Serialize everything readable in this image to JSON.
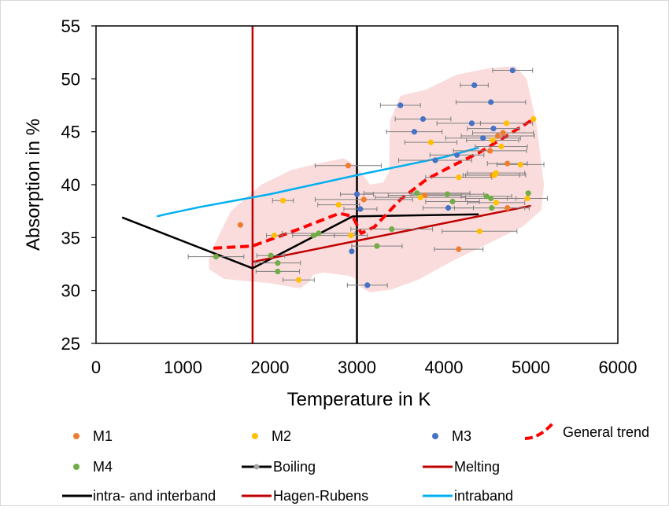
{
  "chart_data": {
    "type": "scatter",
    "xlabel": "Temperature in K",
    "ylabel": "Absorption in %",
    "xlim": [
      0,
      6000
    ],
    "ylim": [
      25,
      55
    ],
    "xticks": [
      0,
      1000,
      2000,
      3000,
      4000,
      5000,
      6000
    ],
    "yticks": [
      25,
      30,
      35,
      40,
      45,
      50,
      55
    ],
    "xtick_labels": [
      "0",
      "1000",
      "2000",
      "3000",
      "4000",
      "5000",
      "6000"
    ],
    "ytick_labels": [
      "25",
      "30",
      "35",
      "40",
      "45",
      "50",
      "55"
    ],
    "grid": false,
    "legend_position": "bottom",
    "colors": {
      "M1": "#ed7d31",
      "M2": "#ffc000",
      "M3": "#4472c4",
      "M4": "#70ad47",
      "boiling": "#000000",
      "melting": "#c00000",
      "intra_interband": "#000000",
      "hagen_rubens": "#c00000",
      "intraband": "#00b0f0",
      "general_trend": "#ff0000",
      "region": "#f8d0d0",
      "errorbar": "#7f7f7f"
    },
    "series": [
      {
        "name": "M1",
        "kind": "points",
        "points": [
          {
            "x": 1660,
            "y": 36.2,
            "err": 0
          },
          {
            "x": 2900,
            "y": 41.8,
            "err": 380
          },
          {
            "x": 3080,
            "y": 38.6,
            "err": 560
          },
          {
            "x": 3780,
            "y": 39.0,
            "err": 420
          },
          {
            "x": 4170,
            "y": 33.9,
            "err": 280
          },
          {
            "x": 4530,
            "y": 43.2,
            "err": 420
          },
          {
            "x": 4620,
            "y": 44.6,
            "err": 420
          },
          {
            "x": 4730,
            "y": 42.0,
            "err": 230
          },
          {
            "x": 4730,
            "y": 37.8,
            "err": 200
          },
          {
            "x": 4560,
            "y": 40.9,
            "err": 310
          },
          {
            "x": 4680,
            "y": 44.9,
            "err": 350
          }
        ]
      },
      {
        "name": "M2",
        "kind": "points",
        "points": [
          {
            "x": 2150,
            "y": 38.5,
            "err": 120
          },
          {
            "x": 2050,
            "y": 35.2,
            "err": 90
          },
          {
            "x": 2330,
            "y": 31.0,
            "err": 180
          },
          {
            "x": 2790,
            "y": 38.1,
            "err": 240
          },
          {
            "x": 2930,
            "y": 35.2,
            "err": 190
          },
          {
            "x": 3730,
            "y": 38.8,
            "err": 520
          },
          {
            "x": 3850,
            "y": 44.0,
            "err": 300
          },
          {
            "x": 4170,
            "y": 40.7,
            "err": 380
          },
          {
            "x": 4410,
            "y": 35.6,
            "err": 430
          },
          {
            "x": 4560,
            "y": 44.2,
            "err": 300
          },
          {
            "x": 4580,
            "y": 40.9,
            "err": 360
          },
          {
            "x": 4600,
            "y": 41.1,
            "err": 330
          },
          {
            "x": 4600,
            "y": 38.3,
            "err": 330
          },
          {
            "x": 4660,
            "y": 43.6,
            "err": 300
          },
          {
            "x": 4720,
            "y": 45.8,
            "err": 300
          },
          {
            "x": 4880,
            "y": 41.9,
            "err": 270
          },
          {
            "x": 4960,
            "y": 38.7,
            "err": 230
          },
          {
            "x": 5030,
            "y": 46.2,
            "err": 0
          }
        ]
      },
      {
        "name": "M3",
        "kind": "points",
        "points": [
          {
            "x": 2940,
            "y": 33.7,
            "err": 0
          },
          {
            "x": 3000,
            "y": 39.1,
            "err": 190
          },
          {
            "x": 3040,
            "y": 37.7,
            "err": 190
          },
          {
            "x": 3120,
            "y": 30.5,
            "err": 230
          },
          {
            "x": 3500,
            "y": 47.5,
            "err": 230
          },
          {
            "x": 3660,
            "y": 45.0,
            "err": 320
          },
          {
            "x": 3760,
            "y": 46.2,
            "err": 320
          },
          {
            "x": 3900,
            "y": 42.3,
            "err": 420
          },
          {
            "x": 4050,
            "y": 37.8,
            "err": 290
          },
          {
            "x": 4150,
            "y": 42.8,
            "err": 310
          },
          {
            "x": 4320,
            "y": 45.8,
            "err": 400
          },
          {
            "x": 4350,
            "y": 49.4,
            "err": 160
          },
          {
            "x": 4450,
            "y": 44.4,
            "err": 430
          },
          {
            "x": 4540,
            "y": 47.8,
            "err": 400
          },
          {
            "x": 4570,
            "y": 45.3,
            "err": 300
          },
          {
            "x": 4790,
            "y": 50.8,
            "err": 230
          }
        ]
      },
      {
        "name": "M4",
        "kind": "points",
        "points": [
          {
            "x": 1380,
            "y": 33.2,
            "err": 320
          },
          {
            "x": 2010,
            "y": 33.3,
            "err": 160
          },
          {
            "x": 2090,
            "y": 32.6,
            "err": 260
          },
          {
            "x": 2090,
            "y": 31.8,
            "err": 250
          },
          {
            "x": 2500,
            "y": 35.2,
            "err": 240
          },
          {
            "x": 2560,
            "y": 35.4,
            "err": 420
          },
          {
            "x": 3230,
            "y": 34.2,
            "err": 290
          },
          {
            "x": 3400,
            "y": 35.8,
            "err": 470
          },
          {
            "x": 3690,
            "y": 39.2,
            "err": 610
          },
          {
            "x": 4040,
            "y": 39.1,
            "err": 420
          },
          {
            "x": 4100,
            "y": 38.4,
            "err": 310
          },
          {
            "x": 4490,
            "y": 38.9,
            "err": 290
          },
          {
            "x": 4540,
            "y": 38.7,
            "err": 290
          },
          {
            "x": 4550,
            "y": 37.8,
            "err": 430
          },
          {
            "x": 4970,
            "y": 39.2,
            "err": 0
          }
        ]
      },
      {
        "name": "Boiling",
        "kind": "vline",
        "x": 3000
      },
      {
        "name": "Melting",
        "kind": "vline",
        "x": 1800
      },
      {
        "name": "intra- and interband",
        "kind": "line",
        "x": [
          300,
          1800,
          2950,
          4400
        ],
        "y": [
          36.9,
          32.1,
          37.0,
          37.2
        ]
      },
      {
        "name": "Hagen-Rubens",
        "kind": "line",
        "x": [
          1800,
          3000,
          5000
        ],
        "y": [
          32.7,
          34.7,
          38.0
        ]
      },
      {
        "name": "intraband",
        "kind": "line",
        "x": [
          700,
          800,
          1200,
          2000,
          3000,
          4000,
          4400
        ],
        "y": [
          37.0,
          37.2,
          37.9,
          39.1,
          40.9,
          42.6,
          43.5
        ]
      },
      {
        "name": "General trend",
        "kind": "line",
        "x": [
          1350,
          1800,
          2300,
          2800,
          2950,
          3050,
          3200,
          3500,
          3800,
          4100,
          4400,
          4700,
          5030
        ],
        "y": [
          34.0,
          34.2,
          35.7,
          37.3,
          37.0,
          35.4,
          36.0,
          38.6,
          40.5,
          41.8,
          43.0,
          44.5,
          46.2
        ]
      }
    ],
    "region": [
      [
        1300,
        32.0
      ],
      [
        1470,
        31.1
      ],
      [
        1700,
        30.9
      ],
      [
        2000,
        30.7
      ],
      [
        2200,
        30.4
      ],
      [
        2350,
        30.2
      ],
      [
        2450,
        30.8
      ],
      [
        2500,
        31.5
      ],
      [
        2620,
        31.7
      ],
      [
        2800,
        31.5
      ],
      [
        2900,
        31.4
      ],
      [
        2970,
        31.2
      ],
      [
        3050,
        30.3
      ],
      [
        3150,
        29.8
      ],
      [
        3400,
        30.1
      ],
      [
        3700,
        31.0
      ],
      [
        4100,
        32.8
      ],
      [
        4500,
        34.4
      ],
      [
        4900,
        36.0
      ],
      [
        5120,
        37.6
      ],
      [
        5150,
        40.0
      ],
      [
        5060,
        46.0
      ],
      [
        4950,
        50.0
      ],
      [
        4820,
        51.2
      ],
      [
        4520,
        51.0
      ],
      [
        4150,
        50.4
      ],
      [
        3800,
        49.0
      ],
      [
        3500,
        48.4
      ],
      [
        3380,
        46.0
      ],
      [
        3370,
        41.2
      ],
      [
        3300,
        40.2
      ],
      [
        3150,
        40.0
      ],
      [
        3000,
        41.7
      ],
      [
        2850,
        42.5
      ],
      [
        2550,
        42.0
      ],
      [
        2250,
        41.4
      ],
      [
        1900,
        40.0
      ],
      [
        1550,
        37.5
      ],
      [
        1370,
        34.5
      ],
      [
        1300,
        33.0
      ]
    ],
    "legend": {
      "m1": "M1",
      "m2": "M2",
      "m3": "M3",
      "m4": "M4",
      "boiling": "Boiling",
      "melting": "Melting",
      "intra_interband": "intra- and interband",
      "hagen_rubens": "Hagen-Rubens",
      "intraband": "intraband",
      "general_trend": "General trend"
    }
  }
}
